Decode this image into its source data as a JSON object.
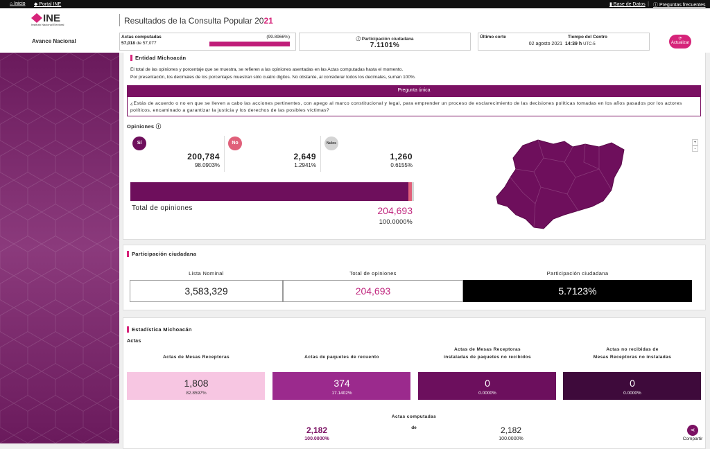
{
  "topbar": {
    "inicio": "Inicio",
    "portal": "Portal INE",
    "base_datos": "Base de Datos",
    "preguntas": "Preguntas frecuentes"
  },
  "header": {
    "logo": "INE",
    "logo_sub": "Instituto Nacional Electoral",
    "title": "Resultados de la Consulta Popular 20",
    "title_accent": "21",
    "section": "Avance Nacional",
    "actas": {
      "label": "Actas computadas",
      "pct": {
        "value": 99.8966,
        "label": "(99.8966%)"
      },
      "count": "57,018",
      "of": "de",
      "total": "57,077"
    },
    "participacion": {
      "label": "Participación ciudadana",
      "value": "7.1101%"
    },
    "corte": {
      "label": "Último corte",
      "date": "02 agosto 2021",
      "tz_label": "Tiempo del Centro",
      "time": "14:39",
      "unit": "h",
      "tz": "UTC-5"
    },
    "refresh": "Actualizar"
  },
  "entidad": {
    "title": "Entidad Michoacán",
    "notes": [
      "El total de las opiniones y porcentaje que se muestra, se refieren a las opiniones asentadas en las Actas computadas hasta el momento.",
      "Por presentación, los decimales de los porcentajes muestran sólo cuatro digitos. No obstante, al considerar todos los decimales, suman 100%."
    ],
    "question_title": "Pregunta única",
    "question": "¿Estás de acuerdo o no en que se lleven a cabo las acciones pertinentes, con apego al marco constitucional y legal, para emprender un proceso de esclarecimiento de las decisiones políticas tomadas en los años pasados por los actores políticos, encaminado a garantizar la justicia y los derechos de las posibles víctimas?",
    "opinions_title": "Opiniones",
    "options": [
      {
        "label": "Sí",
        "count": "200,784",
        "pct": {
          "value": 98.0903,
          "label": "98.0903%"
        },
        "color": "#6e0f5c"
      },
      {
        "label": "No",
        "count": "2,649",
        "pct": {
          "value": 1.2941,
          "label": "1.2941%"
        },
        "color": "#e0607a"
      },
      {
        "label": "Nulos",
        "count": "1,260",
        "pct": {
          "value": 0.6155,
          "label": "0.6155%"
        },
        "color": "#d4d4d4"
      }
    ],
    "total_label": "Total de opiniones",
    "total": "204,693",
    "total_pct": "100.0000%",
    "zoom_in": "+",
    "zoom_out": "-"
  },
  "participacion": {
    "title": "Participación ciudadana",
    "columns": [
      {
        "label": "Lista Nominal",
        "value": "3,583,329"
      },
      {
        "label": "Total de opiniones",
        "value": "204,693"
      },
      {
        "label": "Participación ciudadana",
        "value": "5.7123%"
      }
    ]
  },
  "estadistica": {
    "title": "Estadística Michoacán",
    "subtitle": "Actas",
    "columns": [
      {
        "heading": [
          "Actas de Mesas Receptoras"
        ],
        "value": "1,808",
        "pct": "82.8597%",
        "color": "#f7c6e2"
      },
      {
        "heading": [
          "Actas de paquetes de recuento"
        ],
        "value": "374",
        "pct": "17.1402%",
        "color": "#9b2a8d"
      },
      {
        "heading": [
          "Actas de Mesas Receptoras",
          "instaladas de paquetes no recibidos"
        ],
        "value": "0",
        "pct": "0.0000%",
        "color": "#6c0f5d"
      },
      {
        "heading": [
          "Actas no recibidas de",
          "Mesas Receptoras no instaladas"
        ],
        "value": "0",
        "pct": "0.0000%",
        "color": "#3e0a3b"
      }
    ],
    "computadas_label": "Actas computadas",
    "computadas_of": "de",
    "computadas": "2,182",
    "computadas_pct": "100.0000%",
    "esperadas": "2,182",
    "esperadas_pct": "100.0000%",
    "share": "Compartir"
  }
}
